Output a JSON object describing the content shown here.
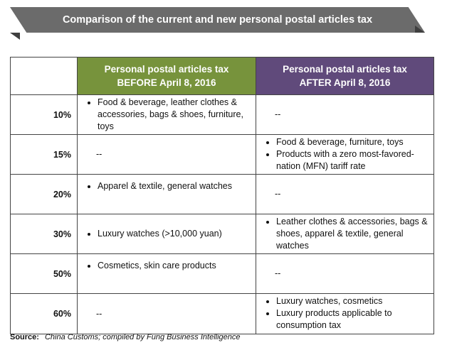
{
  "title": "Comparison of the current and new personal postal articles tax",
  "headers": {
    "rate": "",
    "before_line1": "Personal postal articles tax",
    "before_line2": "BEFORE April 8, 2016",
    "after_line1": "Personal postal articles tax",
    "after_line2": "AFTER April 8, 2016"
  },
  "rows": [
    {
      "rate": "10%",
      "before": [
        "Food & beverage, leather clothes & accessories, bags & shoes, furniture, toys"
      ],
      "after_dash": "--"
    },
    {
      "rate": "15%",
      "before_dash": "--",
      "after": [
        "Food & beverage, furniture, toys",
        "Products with a zero most-favored-nation (MFN) tariff rate"
      ]
    },
    {
      "rate": "20%",
      "before": [
        "Apparel & textile, general watches"
      ],
      "after_dash": "--"
    },
    {
      "rate": "30%",
      "before": [
        "Luxury watches (>10,000 yuan)"
      ],
      "after": [
        "Leather clothes & accessories, bags & shoes, apparel & textile, general watches"
      ]
    },
    {
      "rate": "50%",
      "before": [
        "Cosmetics, skin care products"
      ],
      "after_dash": "--"
    },
    {
      "rate": "60%",
      "before_dash": "--",
      "after": [
        "Luxury watches, cosmetics",
        "Luxury products applicable to consumption tax"
      ]
    }
  ],
  "source": {
    "label": "Source:",
    "text": "China Customs; compiled by Fung Business Intelligence"
  },
  "colors": {
    "banner": "#6b6b6b",
    "before_header": "#77933c",
    "after_header": "#604a7b"
  }
}
